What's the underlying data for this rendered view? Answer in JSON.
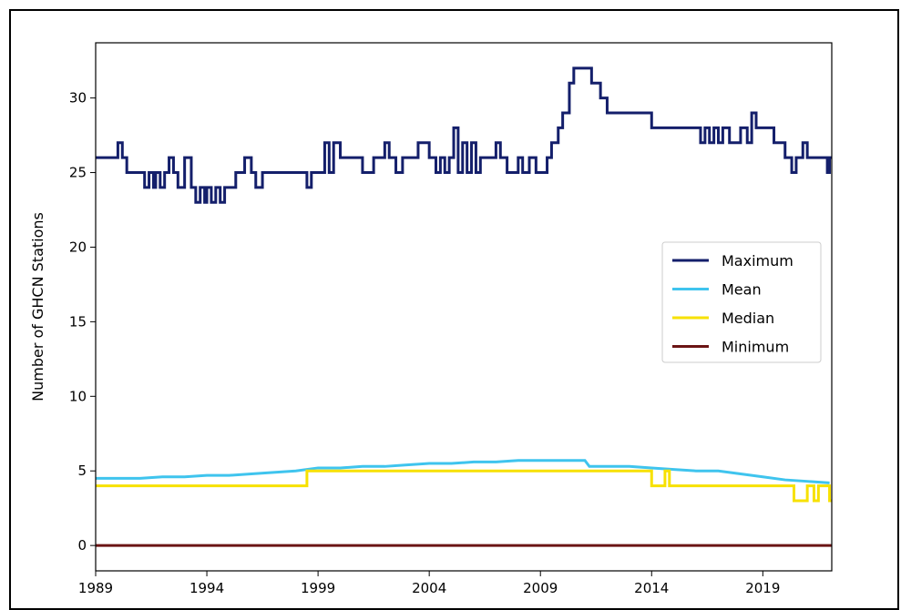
{
  "chart_data": {
    "type": "line",
    "ylabel": "Number of GHCN Stations",
    "xlabel": "",
    "xlim": [
      1989,
      2022.1
    ],
    "ylim": [
      -1.7,
      33.7
    ],
    "x_ticks": [
      1989,
      1994,
      1999,
      2004,
      2009,
      2014,
      2019
    ],
    "y_ticks": [
      0,
      5,
      10,
      15,
      20,
      25,
      30
    ],
    "grid": false,
    "legend_position": "center-right",
    "series": [
      {
        "name": "Maximum",
        "color": "#141f6b",
        "step": true,
        "x": [
          1989,
          1990.0,
          1990.2,
          1990.4,
          1990.7,
          1991.2,
          1991.4,
          1991.6,
          1991.7,
          1991.9,
          1992.1,
          1992.3,
          1992.5,
          1992.7,
          1993.0,
          1993.3,
          1993.5,
          1993.7,
          1993.9,
          1994.0,
          1994.2,
          1994.4,
          1994.6,
          1994.8,
          1995.0,
          1995.3,
          1995.7,
          1996.0,
          1996.2,
          1996.5,
          1997.0,
          1998.5,
          1998.7,
          1999.0,
          1999.3,
          1999.5,
          1999.7,
          2000.0,
          2000.5,
          2001.0,
          2001.5,
          2002.0,
          2002.2,
          2002.5,
          2002.8,
          2003.0,
          2003.5,
          2004.0,
          2004.3,
          2004.5,
          2004.7,
          2004.9,
          2005.1,
          2005.3,
          2005.5,
          2005.7,
          2005.9,
          2006.1,
          2006.3,
          2006.5,
          2007.0,
          2007.2,
          2007.5,
          2007.7,
          2008.0,
          2008.2,
          2008.5,
          2008.8,
          2009.0,
          2009.3,
          2009.5,
          2009.8,
          2010.0,
          2010.3,
          2010.5,
          2011.0,
          2011.3,
          2011.7,
          2012.0,
          2013.0,
          2014.0,
          2015.0,
          2016.0,
          2016.2,
          2016.4,
          2016.6,
          2016.8,
          2017.0,
          2017.2,
          2017.5,
          2017.8,
          2018.0,
          2018.3,
          2018.5,
          2018.7,
          2019.0,
          2019.5,
          2020.0,
          2020.3,
          2020.5,
          2020.8,
          2021.0,
          2021.3,
          2021.7,
          2021.9,
          2022.0
        ],
        "values": [
          26,
          27,
          26,
          25,
          25,
          24,
          25,
          24,
          25,
          24,
          25,
          26,
          25,
          24,
          26,
          24,
          23,
          24,
          23,
          24,
          23,
          24,
          23,
          24,
          24,
          25,
          26,
          25,
          24,
          25,
          25,
          24,
          25,
          25,
          27,
          25,
          27,
          26,
          26,
          25,
          26,
          27,
          26,
          25,
          26,
          26,
          27,
          26,
          25,
          26,
          25,
          26,
          28,
          25,
          27,
          25,
          27,
          25,
          26,
          26,
          27,
          26,
          25,
          25,
          26,
          25,
          26,
          25,
          25,
          26,
          27,
          28,
          29,
          31,
          32,
          32,
          31,
          30,
          29,
          29,
          28,
          28,
          28,
          27,
          28,
          27,
          28,
          27,
          28,
          27,
          27,
          28,
          27,
          29,
          28,
          28,
          27,
          26,
          25,
          26,
          27,
          26,
          26,
          26,
          25,
          26
        ]
      },
      {
        "name": "Mean",
        "color": "#3fc4ee",
        "step": false,
        "x": [
          1989,
          1990,
          1991,
          1992,
          1993,
          1994,
          1995,
          1996,
          1997,
          1998,
          1999,
          2000,
          2001,
          2002,
          2003,
          2004,
          2005,
          2006,
          2007,
          2008,
          2009,
          2010,
          2011,
          2011.2,
          2012,
          2013,
          2014,
          2015,
          2016,
          2017,
          2018,
          2019,
          2020,
          2021,
          2022
        ],
        "values": [
          4.5,
          4.5,
          4.5,
          4.6,
          4.6,
          4.7,
          4.7,
          4.8,
          4.9,
          5.0,
          5.2,
          5.2,
          5.3,
          5.3,
          5.4,
          5.5,
          5.5,
          5.6,
          5.6,
          5.7,
          5.7,
          5.7,
          5.7,
          5.3,
          5.3,
          5.3,
          5.2,
          5.1,
          5.0,
          5.0,
          4.8,
          4.6,
          4.4,
          4.3,
          4.2
        ]
      },
      {
        "name": "Median",
        "color": "#f7e100",
        "step": true,
        "x": [
          1989,
          1998.5,
          1998.6,
          2014.0,
          2014.2,
          2014.6,
          2014.8,
          2020.2,
          2020.4,
          2021.0,
          2021.3,
          2021.5,
          2021.9,
          2022.0
        ],
        "values": [
          4,
          5,
          5,
          4,
          4,
          5,
          4,
          4,
          3,
          4,
          3,
          4,
          4,
          3
        ]
      },
      {
        "name": "Minimum",
        "color": "#6b1414",
        "step": true,
        "x": [
          1989,
          2022.1
        ],
        "values": [
          0,
          0
        ]
      }
    ]
  }
}
